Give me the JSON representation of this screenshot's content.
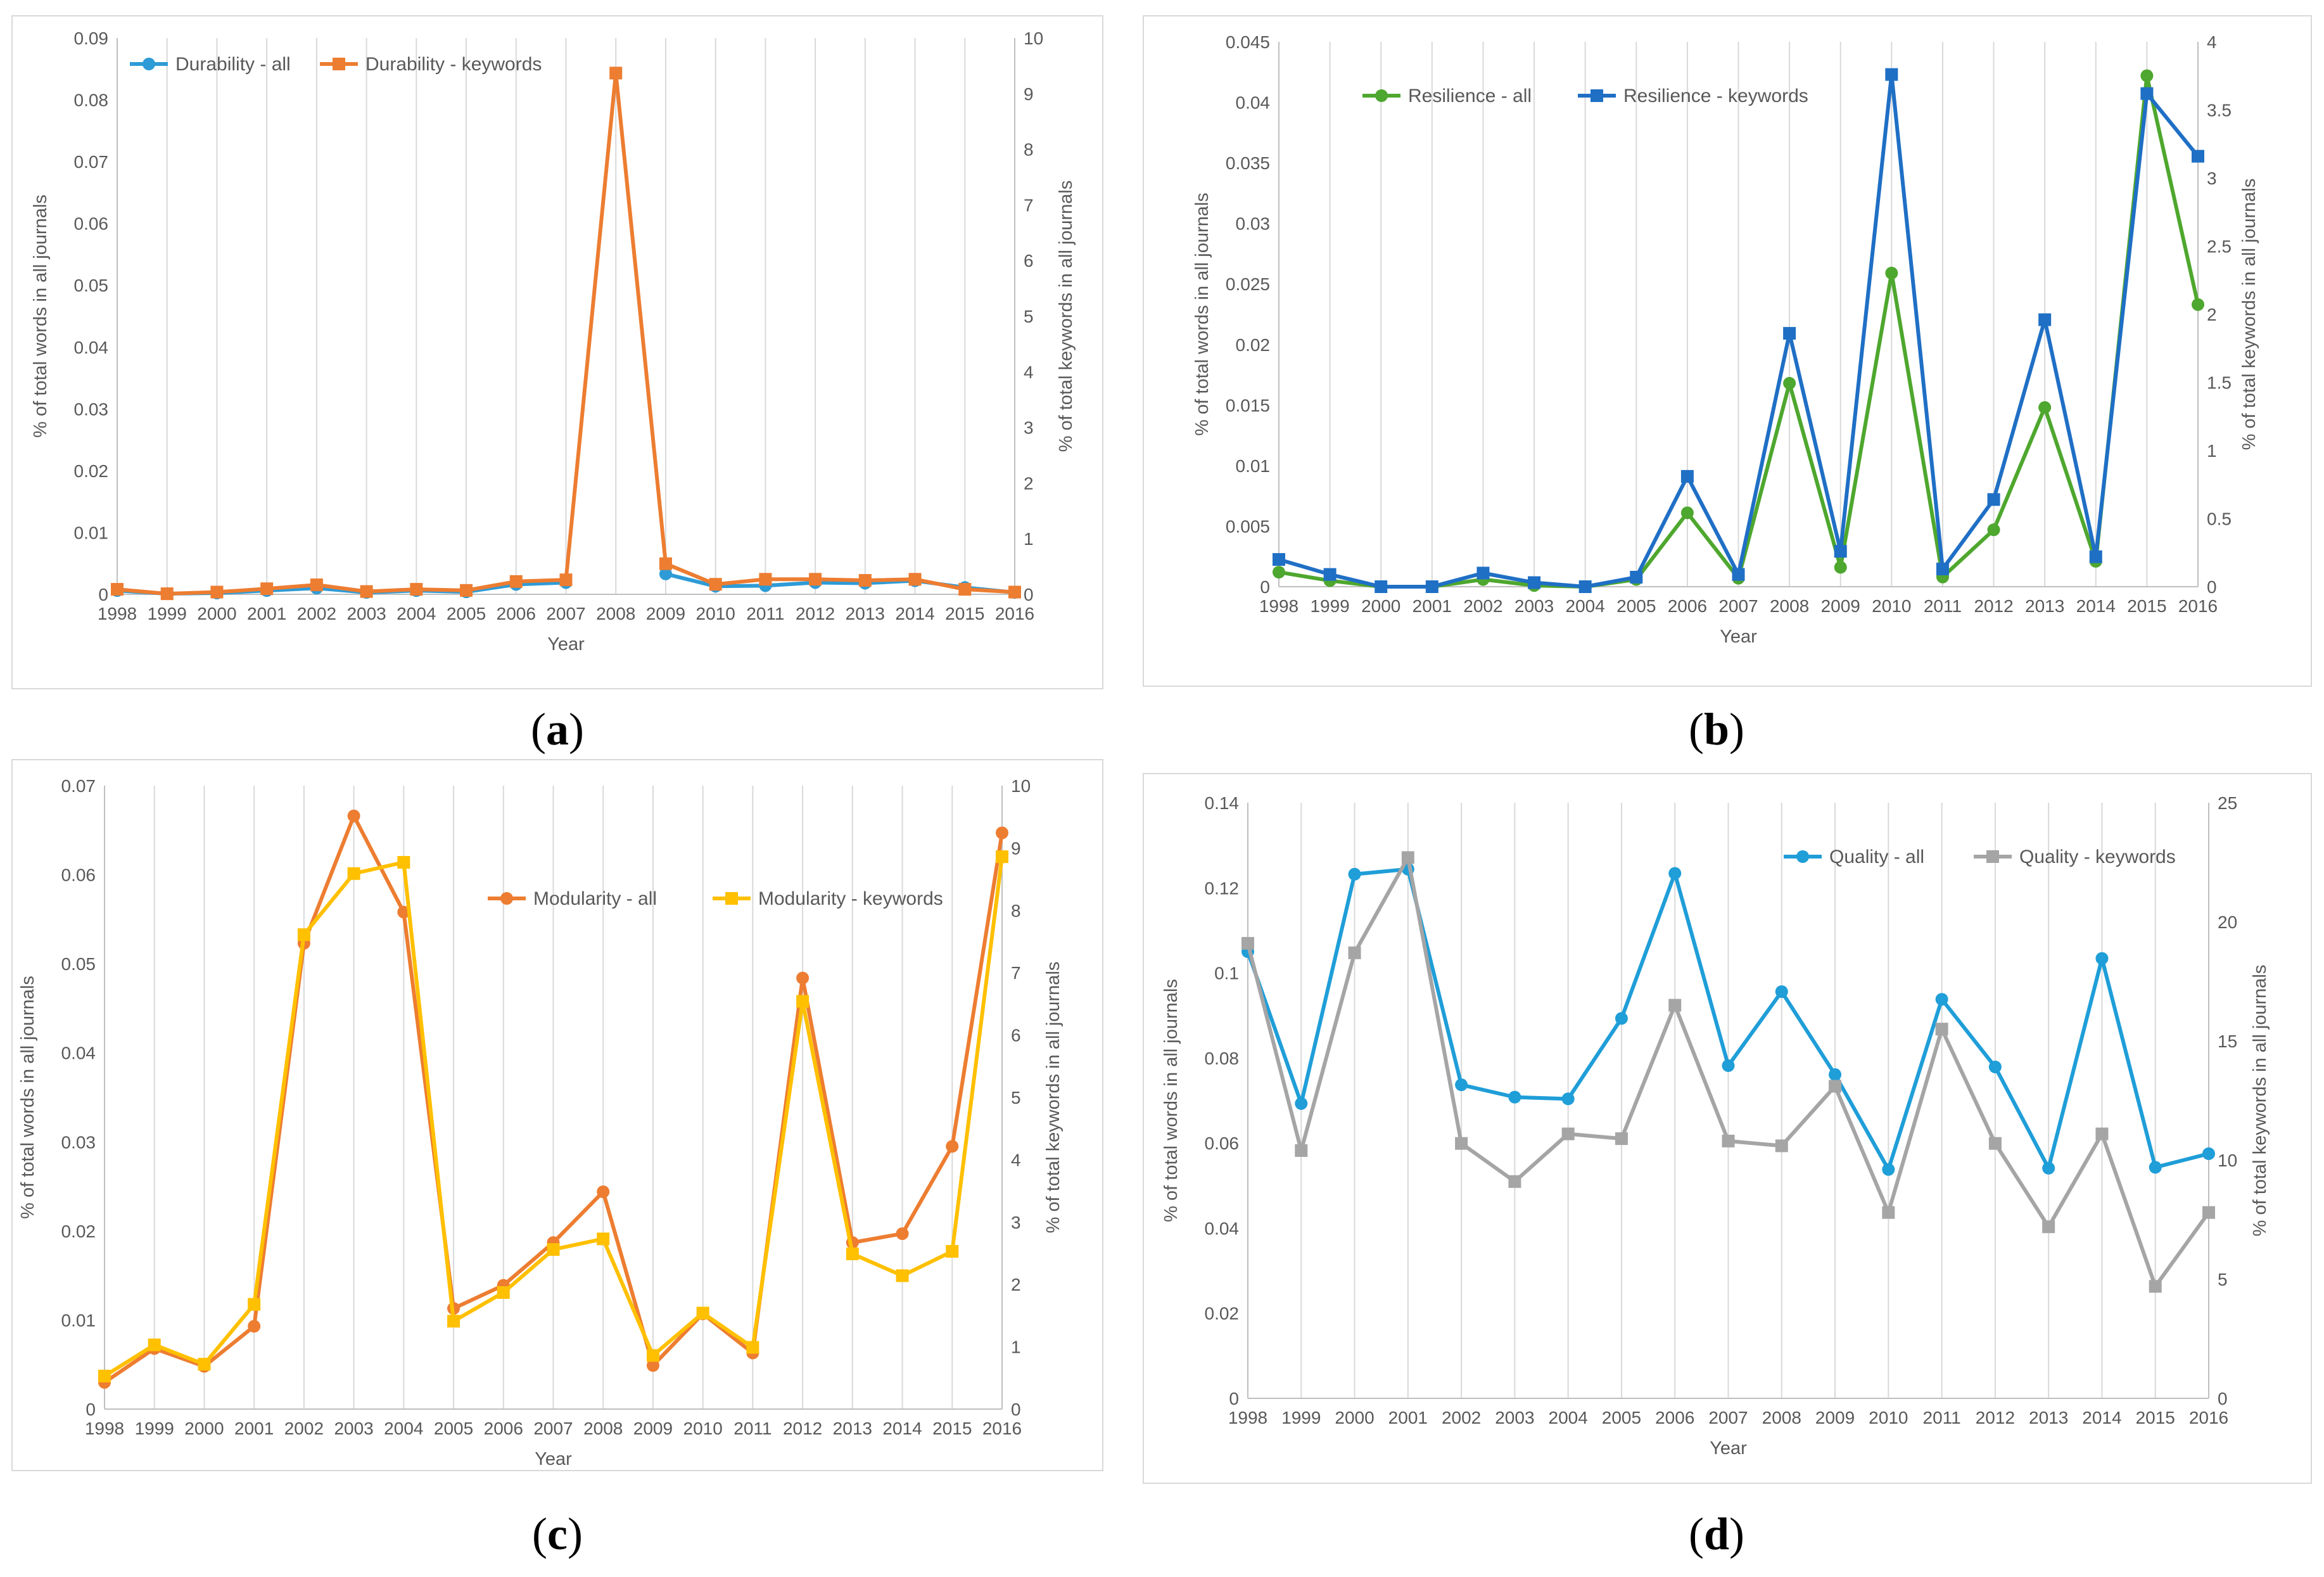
{
  "captions": [
    "a",
    "b",
    "c",
    "d"
  ],
  "chart_data": [
    {
      "id": "a",
      "type": "line",
      "categories": [
        "1998",
        "1999",
        "2000",
        "2001",
        "2002",
        "2003",
        "2004",
        "2005",
        "2006",
        "2007",
        "2008",
        "2009",
        "2010",
        "2011",
        "2012",
        "2013",
        "2014",
        "2015",
        "2016"
      ],
      "xlabel": "Year",
      "ylabel": "% of total words in all journals",
      "y2label": "% of total keywords in all journals",
      "ylim": [
        0,
        0.09
      ],
      "yticks": [
        "0",
        "0.01",
        "0.02",
        "0.03",
        "0.04",
        "0.05",
        "0.06",
        "0.07",
        "0.08",
        "0.09"
      ],
      "y2lim": [
        0,
        10
      ],
      "y2ticks": [
        "0",
        "1",
        "2",
        "3",
        "4",
        "5",
        "6",
        "7",
        "8",
        "9",
        "10"
      ],
      "legend": "top-left",
      "series": [
        {
          "name": "Durability - all",
          "axis": "left",
          "color": "#2E9BD6",
          "marker": "circle",
          "values": [
            0.0006,
            0.0001,
            0.0002,
            0.0006,
            0.001,
            0.0003,
            0.0006,
            0.0004,
            0.0016,
            0.0019,
            null,
            0.0033,
            0.0013,
            0.0014,
            0.0019,
            0.0018,
            0.0022,
            0.0011,
            0.0003
          ]
        },
        {
          "name": "Durability - keywords",
          "axis": "right",
          "color": "#ED7D31",
          "marker": "square",
          "values": [
            0.09,
            0.01,
            0.04,
            0.1,
            0.17,
            0.05,
            0.09,
            0.07,
            0.23,
            0.26,
            9.37,
            0.55,
            0.18,
            0.27,
            0.27,
            0.25,
            0.27,
            0.09,
            0.04
          ]
        }
      ]
    },
    {
      "id": "b",
      "type": "line",
      "categories": [
        "1998",
        "1999",
        "2000",
        "2001",
        "2002",
        "2003",
        "2004",
        "2005",
        "2006",
        "2007",
        "2008",
        "2009",
        "2010",
        "2011",
        "2012",
        "2013",
        "2014",
        "2015",
        "2016"
      ],
      "xlabel": "Year",
      "ylabel": "% of total words in all journals",
      "y2label": "% of total keywords in all journals",
      "ylim": [
        0,
        0.045
      ],
      "yticks": [
        "0",
        "0.005",
        "0.01",
        "0.015",
        "0.02",
        "0.025",
        "0.03",
        "0.035",
        "0.04",
        "0.045"
      ],
      "y2lim": [
        0,
        4
      ],
      "y2ticks": [
        "0",
        "0.5",
        "1",
        "1.5",
        "2",
        "2.5",
        "3",
        "3.5",
        "4"
      ],
      "legend": "top-left",
      "series": [
        {
          "name": "Resilience - all",
          "axis": "left",
          "color": "#4EA72E",
          "marker": "circle",
          "values": [
            0.0012,
            0.0005,
            0,
            0,
            0.0006,
            0.0001,
            0,
            0.0006,
            0.0061,
            0.0007,
            0.0168,
            0.0016,
            0.0259,
            0.0008,
            0.0047,
            0.0148,
            0.0021,
            0.0422,
            0.0233
          ]
        },
        {
          "name": "Resilience - keywords",
          "axis": "right",
          "color": "#1F6FC5",
          "marker": "square",
          "values": [
            0.2,
            0.09,
            0,
            0,
            0.1,
            0.03,
            0,
            0.07,
            0.81,
            0.09,
            1.86,
            0.26,
            3.76,
            0.13,
            0.64,
            1.96,
            0.22,
            3.62,
            3.16
          ]
        }
      ]
    },
    {
      "id": "c",
      "type": "line",
      "categories": [
        "1998",
        "1999",
        "2000",
        "2001",
        "2002",
        "2003",
        "2004",
        "2005",
        "2006",
        "2007",
        "2008",
        "2009",
        "2010",
        "2011",
        "2012",
        "2013",
        "2014",
        "2015",
        "2016"
      ],
      "xlabel": "Year",
      "ylabel": "% of total words in all journals",
      "y2label": "% of total keywords in all journals",
      "ylim": [
        0,
        0.07
      ],
      "yticks": [
        "0",
        "0.01",
        "0.02",
        "0.03",
        "0.04",
        "0.05",
        "0.06",
        "0.07"
      ],
      "y2lim": [
        0,
        10
      ],
      "y2ticks": [
        "0",
        "1",
        "2",
        "3",
        "4",
        "5",
        "6",
        "7",
        "8",
        "9",
        "10"
      ],
      "legend": "upper-right",
      "series": [
        {
          "name": "Modularity - all",
          "axis": "left",
          "color": "#ED7D31",
          "marker": "circle",
          "values": [
            0.003,
            0.0068,
            0.0048,
            0.0093,
            0.0523,
            0.0666,
            0.0558,
            0.0113,
            0.0139,
            0.0187,
            0.0244,
            0.0049,
            0.0107,
            0.0063,
            0.0484,
            0.0187,
            0.0197,
            0.0295,
            0.0647
          ]
        },
        {
          "name": "Modularity - keywords",
          "axis": "right",
          "color": "#FFC000",
          "marker": "square",
          "values": [
            0.53,
            1.03,
            0.72,
            1.68,
            7.61,
            8.59,
            8.77,
            1.41,
            1.87,
            2.56,
            2.73,
            0.86,
            1.54,
            0.99,
            6.54,
            2.49,
            2.14,
            2.53,
            8.86
          ]
        }
      ]
    },
    {
      "id": "d",
      "type": "line",
      "categories": [
        "1998",
        "1999",
        "2000",
        "2001",
        "2002",
        "2003",
        "2004",
        "2005",
        "2006",
        "2007",
        "2008",
        "2009",
        "2010",
        "2011",
        "2012",
        "2013",
        "2014",
        "2015",
        "2016"
      ],
      "xlabel": "Year",
      "ylabel": "% of total words in all journals",
      "y2label": "% of total keywords in all journals",
      "ylim": [
        0,
        0.14
      ],
      "yticks": [
        "0",
        "0.02",
        "0.04",
        "0.06",
        "0.08",
        "0.1",
        "0.12",
        "0.14"
      ],
      "y2lim": [
        0,
        25
      ],
      "y2ticks": [
        "0",
        "5",
        "10",
        "15",
        "20",
        "25"
      ],
      "legend": "top-right",
      "series": [
        {
          "name": "Quality - all",
          "axis": "left",
          "color": "#1F9ED8",
          "marker": "circle",
          "values": [
            0.105,
            0.0693,
            0.1232,
            0.1244,
            0.0737,
            0.0708,
            0.0704,
            0.0893,
            0.1234,
            0.0782,
            0.0956,
            0.0761,
            0.0538,
            0.0938,
            0.0779,
            0.0541,
            0.1034,
            0.0543,
            0.0575
          ]
        },
        {
          "name": "Quality - keywords",
          "axis": "right",
          "color": "#A5A5A5",
          "marker": "square",
          "values": [
            19.1,
            10.4,
            18.7,
            22.7,
            10.7,
            9.1,
            11.1,
            10.9,
            16.5,
            10.8,
            10.6,
            13.1,
            7.8,
            15.5,
            10.7,
            7.2,
            11.1,
            4.7,
            7.8
          ]
        }
      ]
    }
  ]
}
